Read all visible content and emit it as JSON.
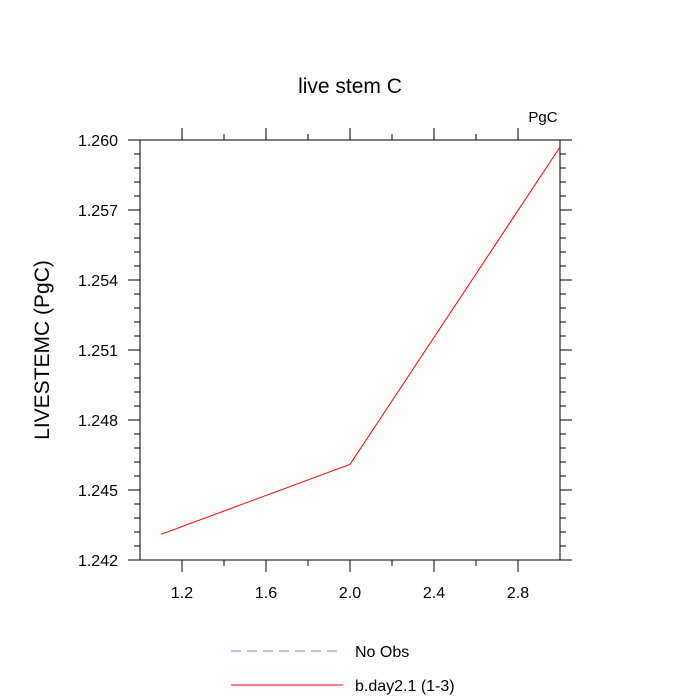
{
  "chart_data": {
    "type": "line",
    "title": "live stem C",
    "units_label": "PgC",
    "ylabel": "LIVESTEMC  (PgC)",
    "xlabel": "",
    "xlim": [
      1.0,
      3.0
    ],
    "ylim": [
      1.242,
      1.26
    ],
    "x_ticks": [
      1.2,
      1.6,
      2.0,
      2.4,
      2.8
    ],
    "x_tick_labels": [
      "1.2",
      "1.6",
      "2.0",
      "2.4",
      "2.8"
    ],
    "y_ticks": [
      1.242,
      1.245,
      1.248,
      1.251,
      1.254,
      1.257,
      1.26
    ],
    "y_tick_labels": [
      "1.242",
      "1.245",
      "1.248",
      "1.251",
      "1.254",
      "1.257",
      "1.260"
    ],
    "grid": false,
    "legend_position": "bottom-center",
    "series": [
      {
        "name": "No Obs",
        "color": "#8080ff",
        "dash": "dashed",
        "x": [],
        "y": []
      },
      {
        "name": "b.day2.1 (1-3)",
        "color": "#ff0000",
        "dash": "solid",
        "x": [
          1.1,
          2.0,
          3.0
        ],
        "y": [
          1.2431,
          1.2461,
          1.2597
        ]
      }
    ]
  }
}
